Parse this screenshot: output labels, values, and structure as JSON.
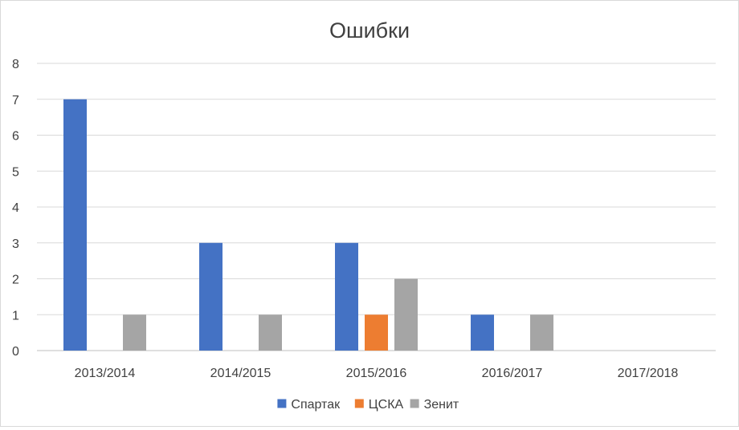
{
  "chart_data": {
    "type": "bar",
    "title": "Ошибки",
    "categories": [
      "2013/2014",
      "2014/2015",
      "2015/2016",
      "2016/2017",
      "2017/2018"
    ],
    "series": [
      {
        "name": "Спартак",
        "color": "#4472c4",
        "values": [
          7,
          3,
          3,
          1,
          0
        ]
      },
      {
        "name": "ЦСКА",
        "color": "#ed7d31",
        "values": [
          0,
          0,
          1,
          0,
          0
        ]
      },
      {
        "name": "Зенит",
        "color": "#a5a5a5",
        "values": [
          1,
          1,
          2,
          1,
          0
        ]
      }
    ],
    "ylim": [
      0,
      8
    ],
    "yticks": [
      "0",
      "1",
      "2",
      "3",
      "4",
      "5",
      "6",
      "7",
      "8"
    ],
    "grid": true,
    "legend_position": "bottom"
  }
}
